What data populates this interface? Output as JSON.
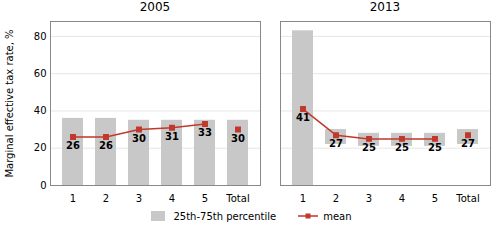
{
  "chart_data": [
    {
      "type": "bar",
      "title": "2005",
      "ylabel": "Marginal effective tax rate, %",
      "categories": [
        "1",
        "2",
        "3",
        "4",
        "5",
        "Total"
      ],
      "ylim": [
        0,
        88
      ],
      "yticks": [
        0,
        20,
        40,
        60,
        80
      ],
      "grid": true,
      "legend": "bottom",
      "series": [
        {
          "name": "25th-75th percentile",
          "type": "bar",
          "color": "#c8c8c8",
          "bottom": [
            0,
            0,
            0,
            0,
            0,
            0
          ],
          "values": [
            36,
            36,
            35,
            35,
            35,
            35
          ]
        },
        {
          "name": "mean",
          "type": "line",
          "color": "#c0392b",
          "marker": "square",
          "line_style": "solid",
          "data_labels": true,
          "values": [
            26,
            26,
            30,
            31,
            33,
            null
          ]
        },
        {
          "type": "scatter",
          "color": "#c0392b",
          "marker": "square",
          "data_labels": true,
          "values": [
            null,
            null,
            null,
            null,
            null,
            30
          ]
        }
      ]
    },
    {
      "type": "bar",
      "title": "2013",
      "categories": [
        "1",
        "2",
        "3",
        "4",
        "5",
        "Total"
      ],
      "ylim": [
        0,
        88
      ],
      "yticks": [
        0,
        20,
        40,
        60,
        80
      ],
      "grid": true,
      "legend": "bottom",
      "tick_labels": "x",
      "series": [
        {
          "name": "25th-75th percentile",
          "type": "bar",
          "color": "#c8c8c8",
          "bottom": [
            0,
            22,
            21,
            21,
            21,
            22
          ],
          "values": [
            83,
            30,
            28,
            28,
            28,
            30
          ]
        },
        {
          "name": "mean",
          "type": "line",
          "color": "#c0392b",
          "marker": "square",
          "line_style": "solid",
          "data_labels": true,
          "values": [
            41,
            27,
            25,
            25,
            25,
            null
          ]
        },
        {
          "type": "scatter",
          "color": "#c0392b",
          "marker": "square",
          "data_labels": true,
          "values": [
            null,
            null,
            null,
            null,
            null,
            27
          ]
        }
      ]
    }
  ]
}
